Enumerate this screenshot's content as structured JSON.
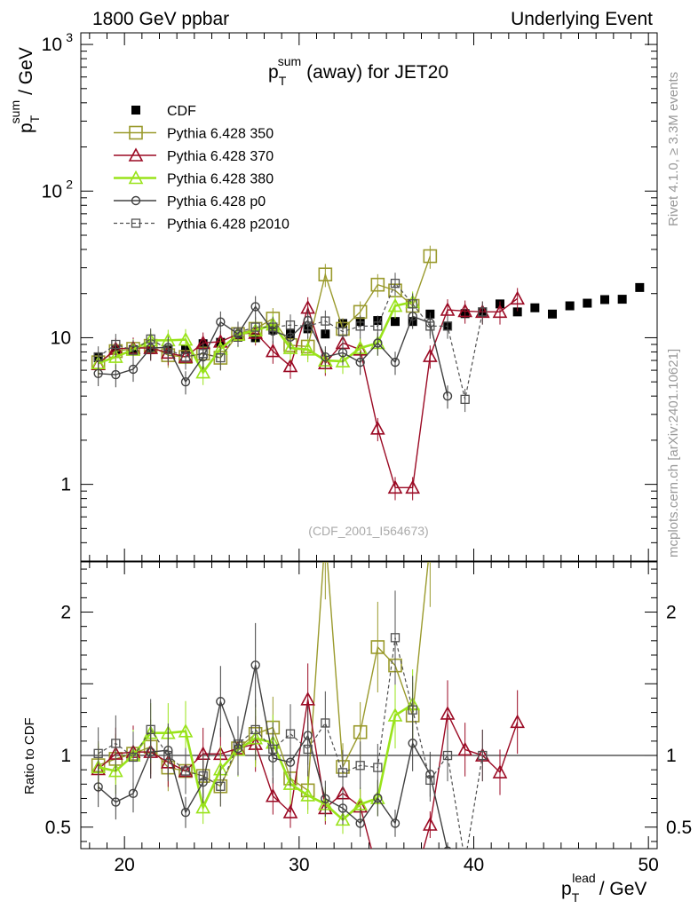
{
  "header": {
    "left": "1800 GeV ppbar",
    "right": "Underlying Event"
  },
  "side_labels": {
    "rivet": "Rivet 4.1.0, ≥ 3.3M events",
    "mcplots": "mcplots.cern.ch [arXiv:2401.10621]"
  },
  "colors": {
    "cdf": "#000000",
    "p350": "#9a9a2c",
    "p370": "#9b0a24",
    "p380": "#99e31a",
    "p0": "#404040",
    "p2010": "#505050"
  },
  "chart_data": {
    "type": "scatter",
    "title_main": "p",
    "title_sup": "sum",
    "title_sub": "T",
    "title_rest": "(away) for JET20",
    "analysis_id": "(CDF_2001_I564673)",
    "xlabel_main": "p",
    "xlabel_sup": "lead",
    "xlabel_sub": "T",
    "xlabel_rest": "/ GeV",
    "ylabel_main": "p",
    "ylabel_sup": "sum",
    "ylabel_sub": "T",
    "ylabel_rest": "/ GeV",
    "ratio_ylabel": "Ratio to CDF",
    "xlim": [
      17.5,
      50.5
    ],
    "ylim": [
      0.3,
      1200
    ],
    "yscale": "log",
    "ratio_ylim": [
      0.35,
      2.35
    ],
    "x_ticks": [
      "20",
      "30",
      "40",
      "50"
    ],
    "y_ticks_main": [
      {
        "base": "1",
        "exp": ""
      },
      {
        "base": "10",
        "exp": ""
      },
      {
        "base": "10",
        "exp": "2"
      },
      {
        "base": "10",
        "exp": "3"
      }
    ],
    "ratio_ticks": [
      "0.5",
      "1",
      "2"
    ],
    "legend": [
      {
        "key": "cdf",
        "label": "CDF"
      },
      {
        "key": "p350",
        "label": "Pythia 6.428 350"
      },
      {
        "key": "p370",
        "label": "Pythia 6.428 370"
      },
      {
        "key": "p380",
        "label": "Pythia 6.428 380"
      },
      {
        "key": "p0",
        "label": "Pythia 6.428 p0"
      },
      {
        "key": "p2010",
        "label": "Pythia 6.428 p2010"
      }
    ],
    "x": [
      18.5,
      19.5,
      20.5,
      21.5,
      22.5,
      23.5,
      24.5,
      25.5,
      26.5,
      27.5,
      28.5,
      29.5,
      30.5,
      31.5,
      32.5,
      33.5,
      34.5,
      35.5,
      36.5,
      37.5,
      38.5,
      39.5,
      40.5,
      41.5,
      42.5,
      43.5,
      44.5,
      45.5,
      46.5,
      47.5,
      48.5,
      49.5
    ],
    "series": [
      {
        "key": "cdf",
        "name": "CDF",
        "values": [
          7.3,
          8.3,
          8.3,
          8.3,
          8.3,
          8.3,
          9.1,
          9.3,
          10.1,
          10.0,
          11.3,
          10.6,
          11.5,
          10.6,
          12.5,
          12.9,
          13.1,
          12.9,
          12.9,
          14.5,
          12.0,
          14.6,
          15.0,
          17.0,
          15.0,
          16.0,
          14.5,
          16.5,
          17.2,
          18.2,
          18.3,
          22.0
        ]
      },
      {
        "key": "p350",
        "name": "Pythia 6.428 350",
        "values": [
          6.8,
          8.1,
          8.4,
          8.8,
          7.6,
          7.4,
          7.8,
          7.3,
          10.6,
          11.5,
          13.5,
          8.9,
          8.7,
          27,
          11.5,
          15,
          23,
          21,
          16.5,
          36
        ]
      },
      {
        "key": "p370",
        "name": "Pythia 6.428 370",
        "values": [
          6.6,
          8.4,
          8.5,
          8.5,
          7.9,
          7.4,
          9.2,
          9.4,
          10.6,
          10.8,
          8.1,
          6.4,
          16.0,
          6.7,
          9.2,
          8.3,
          2.4,
          0.95,
          0.95,
          7.5,
          15.5,
          15.2,
          15.0,
          15.0,
          18.5
        ]
      },
      {
        "key": "p380",
        "name": "Pythia 6.428 380",
        "values": [
          6.7,
          7.4,
          8.3,
          9.6,
          9.6,
          9.7,
          5.8,
          8.4,
          10.5,
          11.2,
          12.3,
          8.5,
          8.3,
          7.0,
          6.9,
          8.5,
          9.2,
          16.5,
          17.5
        ]
      },
      {
        "key": "p0",
        "name": "Pythia 6.428 p0",
        "values": [
          5.7,
          5.6,
          6.1,
          8.5,
          8.6,
          5.0,
          7.4,
          12.8,
          10.6,
          16.3,
          11.1,
          10.1,
          13.1,
          7.4,
          7.9,
          6.8,
          9.2,
          6.8,
          14.0,
          12.6,
          4.0
        ]
      },
      {
        "key": "p2010",
        "name": "Pythia 6.428 p2010",
        "values": [
          7.4,
          9.0,
          8.2,
          9.8,
          8.3,
          7.4,
          7.8,
          7.3,
          10.9,
          11.8,
          11.8,
          12.2,
          12.0,
          13.0,
          11.0,
          12.0,
          12.0,
          23.5,
          17.0,
          12.0,
          12.0,
          3.8,
          15.0
        ]
      }
    ]
  }
}
